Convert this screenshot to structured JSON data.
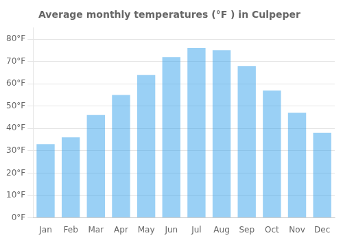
{
  "chart_data": {
    "type": "bar",
    "title": "Average monthly temperatures (°F ) in Culpeper",
    "categories": [
      "Jan",
      "Feb",
      "Mar",
      "Apr",
      "May",
      "Jun",
      "Jul",
      "Aug",
      "Sep",
      "Oct",
      "Nov",
      "Dec"
    ],
    "values": [
      33,
      36,
      46,
      55,
      64,
      72,
      76,
      75,
      68,
      57,
      47,
      38
    ],
    "ylim": [
      0,
      85
    ],
    "yticks": [
      {
        "value": 0,
        "label": "0°F"
      },
      {
        "value": 10,
        "label": "10°F"
      },
      {
        "value": 20,
        "label": "20°F"
      },
      {
        "value": 30,
        "label": "30°F"
      },
      {
        "value": 40,
        "label": "40°F"
      },
      {
        "value": 50,
        "label": "50°F"
      },
      {
        "value": 60,
        "label": "60°F"
      },
      {
        "value": 70,
        "label": "70°F"
      },
      {
        "value": 80,
        "label": "80°F"
      }
    ],
    "grid": true
  }
}
